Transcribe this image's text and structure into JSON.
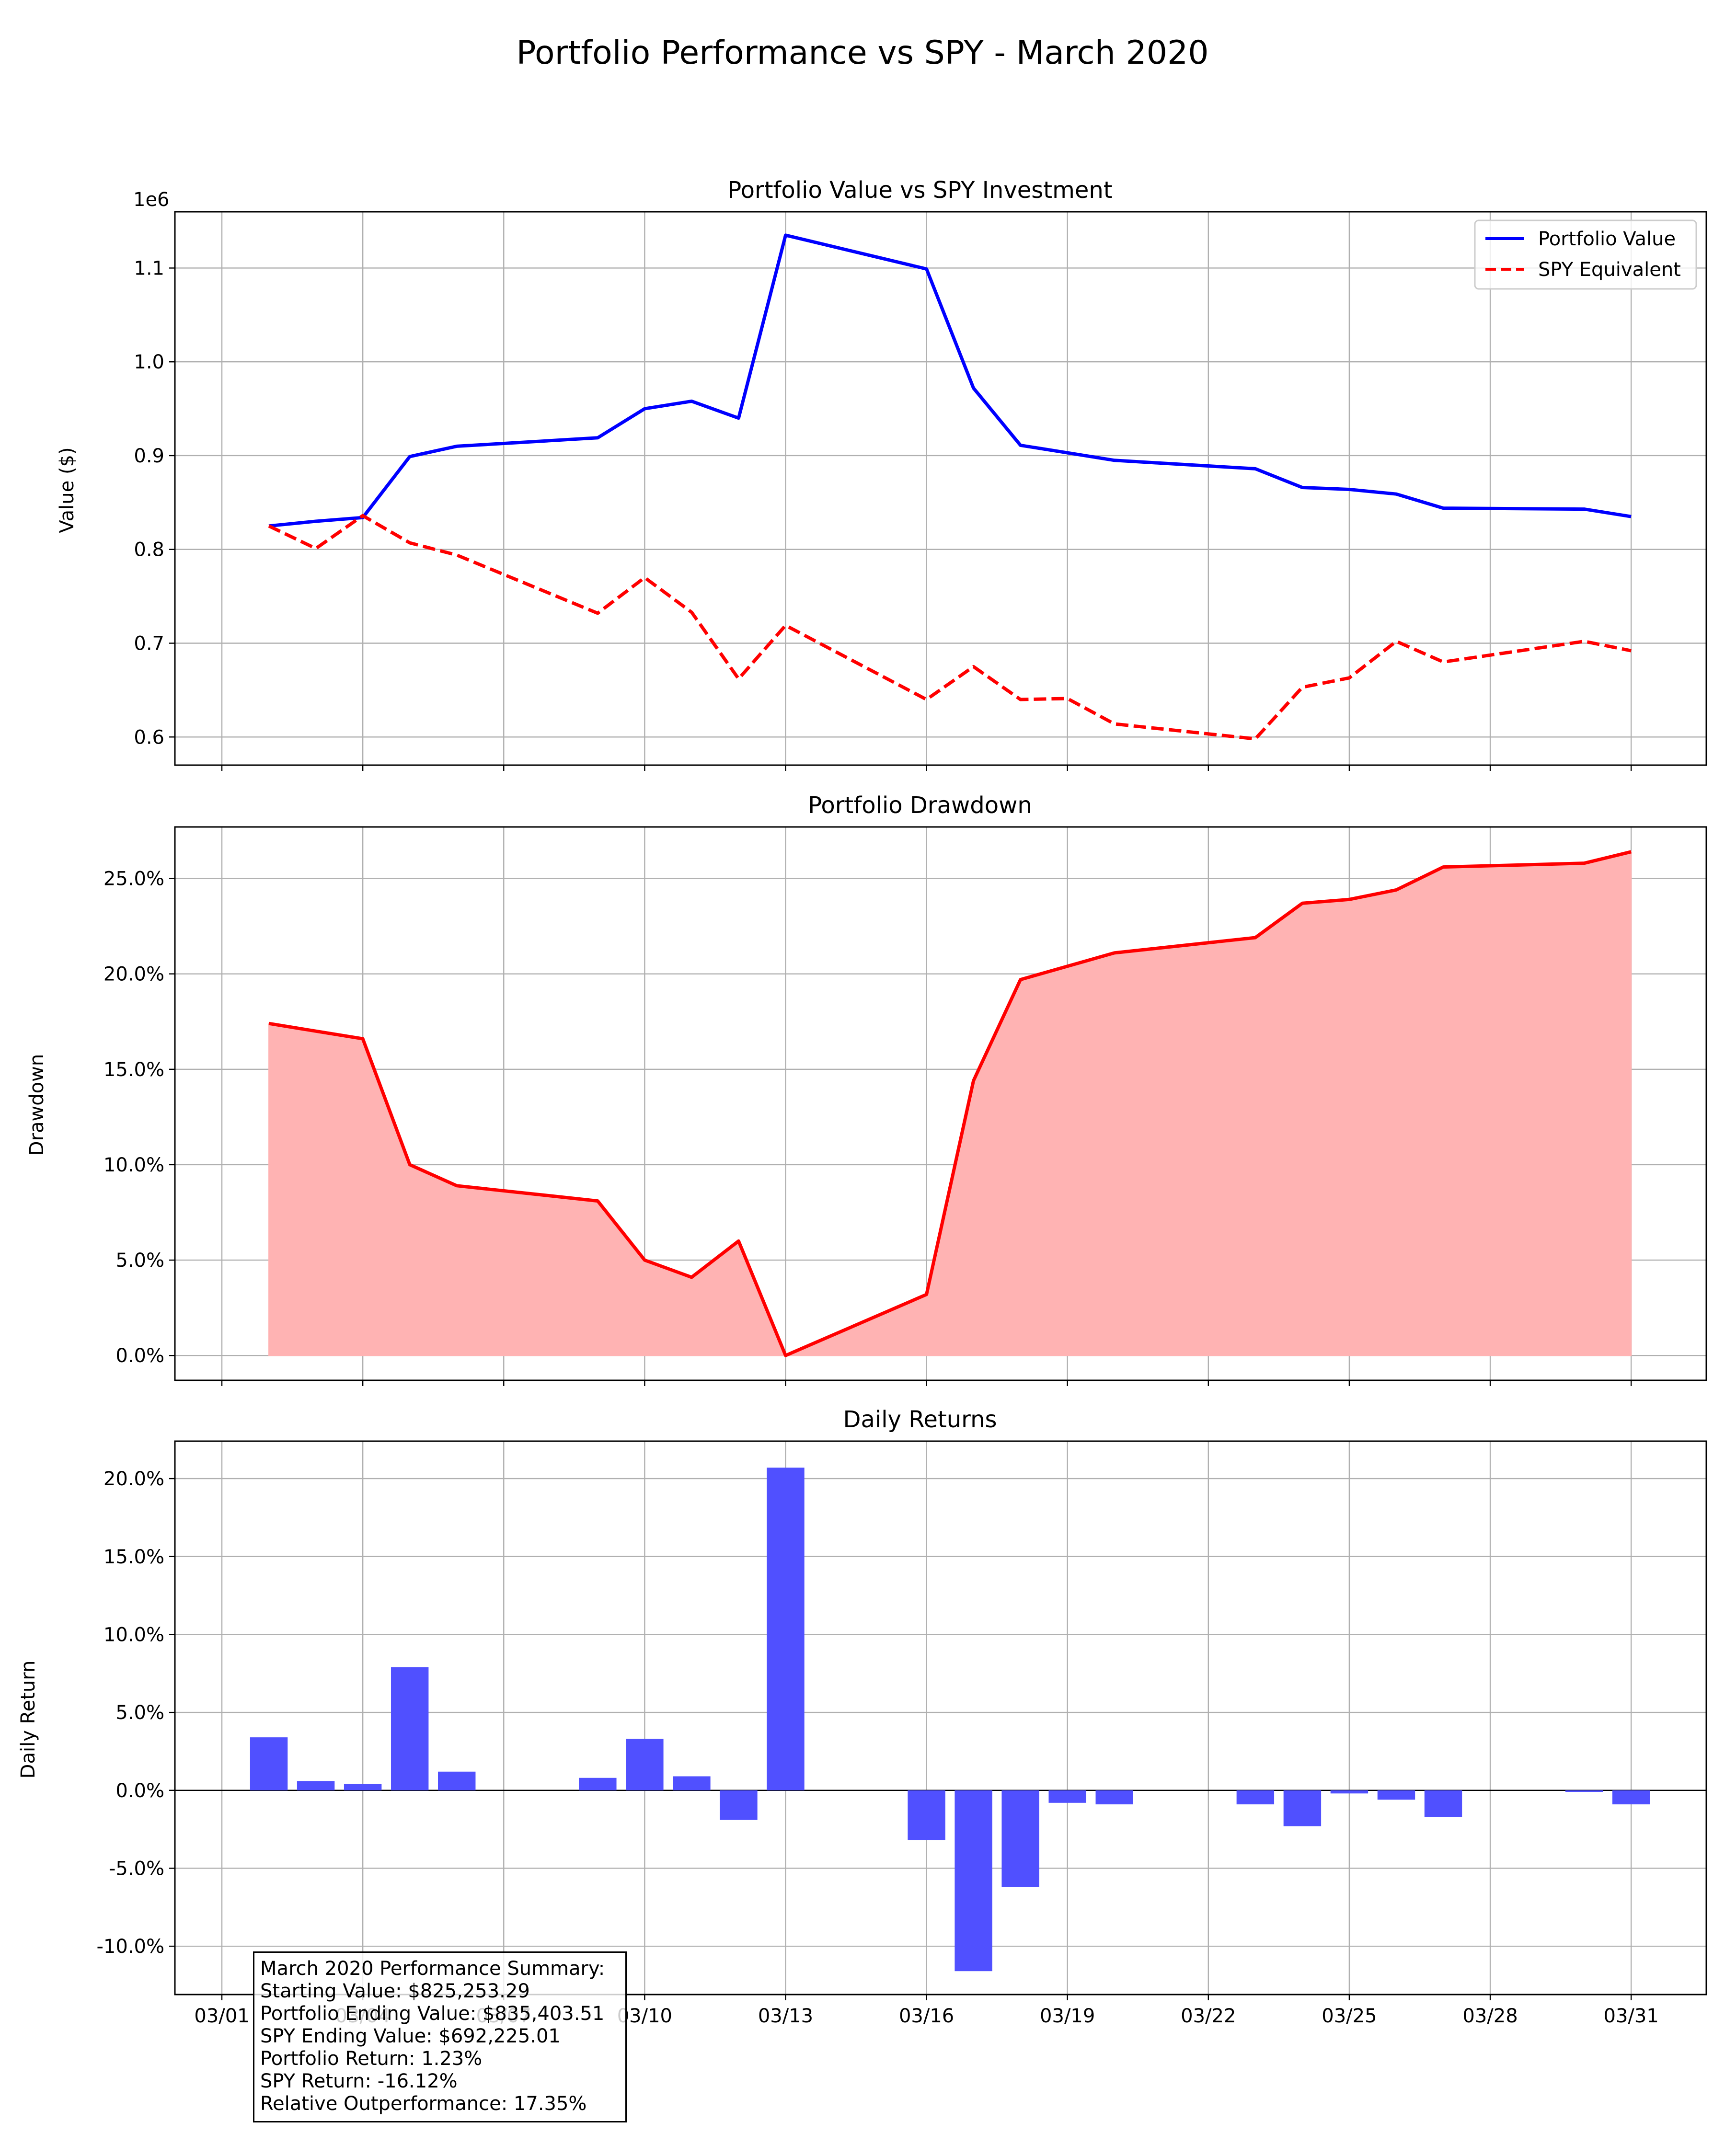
{
  "figure": {
    "title": "Portfolio Performance vs SPY - March 2020",
    "x_ticks": [
      "03/01",
      "03/04",
      "03/07",
      "03/10",
      "03/13",
      "03/16",
      "03/19",
      "03/22",
      "03/25",
      "03/28",
      "03/31"
    ],
    "summary": [
      "March 2020 Performance Summary:",
      "Starting Value: $825,253.29",
      "Portfolio Ending Value: $835,403.51",
      "SPY Ending Value: $692,225.01",
      "Portfolio Return: 1.23%",
      "SPY Return: -16.12%",
      "Relative Outperformance: 17.35%"
    ]
  },
  "colors": {
    "portfolio": "#0000ff",
    "spy": "#ff0000",
    "drawdown_line": "#ff0000",
    "drawdown_fill": "#ffb3b3",
    "bars": "#5050ff",
    "grid": "#b0b0b0"
  },
  "chart_data": [
    {
      "type": "line",
      "title": "Portfolio Value vs SPY Investment",
      "ylabel": "Value ($)",
      "y_offset_label": "1e6",
      "y_ticks": [
        "0.6",
        "0.7",
        "0.8",
        "0.9",
        "1.0",
        "1.1"
      ],
      "ylim": [
        0.57,
        1.16
      ],
      "legend_position": "top-right",
      "x": [
        "03/02",
        "03/03",
        "03/04",
        "03/05",
        "03/06",
        "03/09",
        "03/10",
        "03/11",
        "03/12",
        "03/13",
        "03/16",
        "03/17",
        "03/18",
        "03/19",
        "03/20",
        "03/23",
        "03/24",
        "03/25",
        "03/26",
        "03/27",
        "03/30",
        "03/31"
      ],
      "series": [
        {
          "name": "Portfolio Value",
          "style": "solid",
          "values": [
            0.825,
            0.83,
            0.834,
            0.899,
            0.91,
            0.919,
            0.95,
            0.958,
            0.94,
            1.135,
            1.099,
            0.972,
            0.911,
            0.903,
            0.895,
            0.886,
            0.866,
            0.864,
            0.859,
            0.844,
            0.843,
            0.835
          ]
        },
        {
          "name": "SPY Equivalent",
          "style": "dashed",
          "values": [
            0.825,
            0.801,
            0.836,
            0.807,
            0.794,
            0.732,
            0.77,
            0.733,
            0.662,
            0.719,
            0.64,
            0.675,
            0.64,
            0.641,
            0.614,
            0.598,
            0.653,
            0.663,
            0.702,
            0.68,
            0.702,
            0.692
          ]
        }
      ]
    },
    {
      "type": "area",
      "title": "Portfolio Drawdown",
      "ylabel": "Drawdown",
      "y_ticks": [
        "0.0%",
        "5.0%",
        "10.0%",
        "15.0%",
        "20.0%",
        "25.0%"
      ],
      "ylim": [
        -0.013,
        0.277
      ],
      "x": [
        "03/02",
        "03/03",
        "03/04",
        "03/05",
        "03/06",
        "03/09",
        "03/10",
        "03/11",
        "03/12",
        "03/13",
        "03/16",
        "03/17",
        "03/18",
        "03/19",
        "03/20",
        "03/23",
        "03/24",
        "03/25",
        "03/26",
        "03/27",
        "03/30",
        "03/31"
      ],
      "values": [
        0.174,
        0.17,
        0.166,
        0.1,
        0.089,
        0.081,
        0.05,
        0.041,
        0.06,
        0.0,
        0.032,
        0.144,
        0.197,
        0.204,
        0.211,
        0.219,
        0.237,
        0.239,
        0.244,
        0.256,
        0.258,
        0.264
      ]
    },
    {
      "type": "bar",
      "title": "Daily Returns",
      "ylabel": "Daily Return",
      "y_ticks": [
        "-10.0%",
        "-5.0%",
        "0.0%",
        "5.0%",
        "10.0%",
        "15.0%",
        "20.0%"
      ],
      "ylim": [
        -0.131,
        0.224
      ],
      "x": [
        "03/02",
        "03/03",
        "03/04",
        "03/05",
        "03/06",
        "03/09",
        "03/10",
        "03/11",
        "03/12",
        "03/13",
        "03/16",
        "03/17",
        "03/18",
        "03/19",
        "03/20",
        "03/23",
        "03/24",
        "03/25",
        "03/26",
        "03/27",
        "03/30",
        "03/31"
      ],
      "values": [
        0.034,
        0.006,
        0.004,
        0.079,
        0.012,
        0.008,
        0.033,
        0.009,
        -0.019,
        0.207,
        -0.032,
        -0.116,
        -0.062,
        -0.008,
        -0.009,
        -0.009,
        -0.023,
        -0.002,
        -0.006,
        -0.017,
        -0.001,
        -0.009
      ]
    }
  ]
}
